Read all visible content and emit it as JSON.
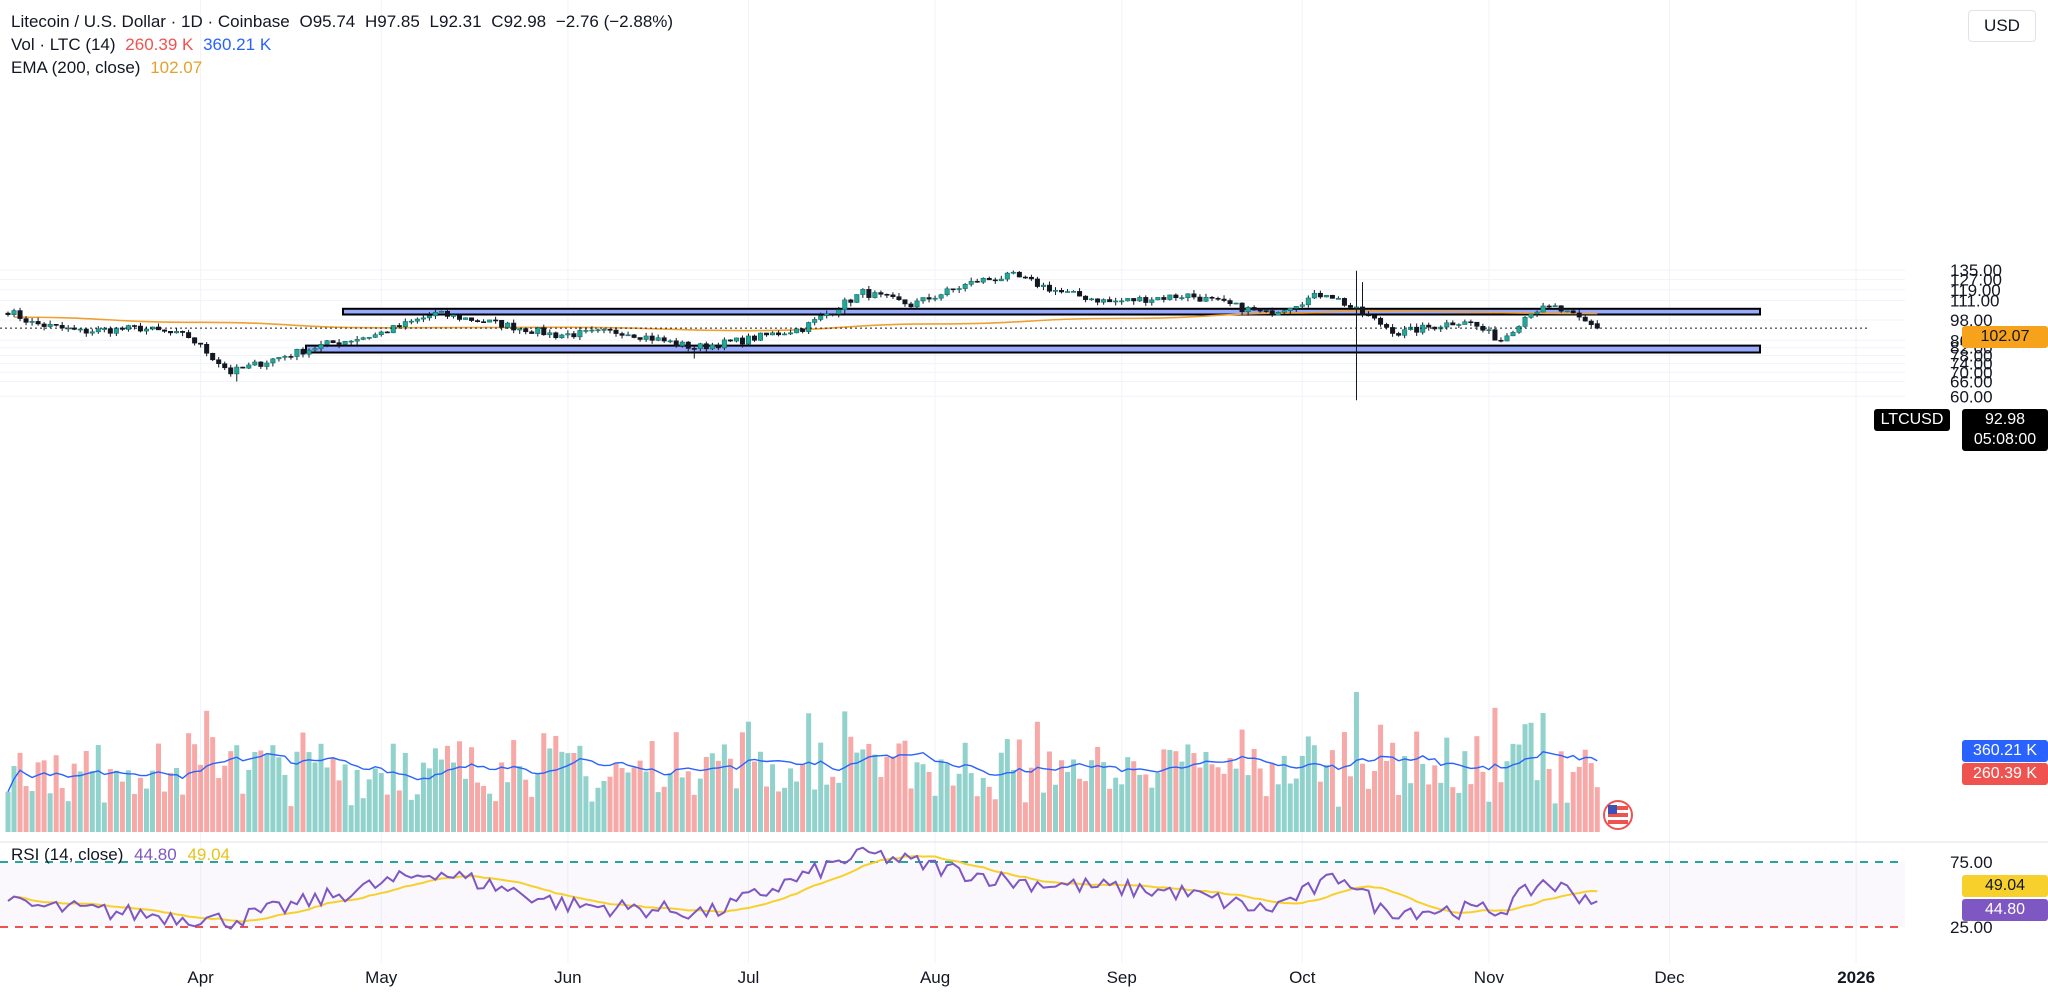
{
  "legend": {
    "title": "Litecoin / U.S. Dollar · 1D · Coinbase",
    "o_label": "O",
    "o": "95.74",
    "h_label": "H",
    "h": "97.85",
    "l_label": "L",
    "l": "92.31",
    "c_label": "C",
    "c": "92.98",
    "change": "−2.76 (−2.88%)",
    "vol_label": "Vol · LTC (14)",
    "vol_value": "260.39 K",
    "vol_ma": "360.21 K",
    "ema_label": "EMA (200, close)",
    "ema_value": "102.07"
  },
  "rsi_legend": {
    "label": "RSI (14, close)",
    "rsi": "44.80",
    "ma": "49.04"
  },
  "currency": "USD",
  "badges": {
    "ema": "102.07",
    "ticker": "LTCUSD",
    "price": "92.98",
    "countdown": "05:08:00",
    "vol_ma": "360.21 K",
    "vol": "260.39 K",
    "rsi_ma": "49.04",
    "rsi": "44.80"
  },
  "colors": {
    "up": "#26a69a",
    "down": "#ef5350",
    "ema": "#f0a030",
    "vol_ma": "#2962ff",
    "rsi": "#7e57c2",
    "rsi_ma": "#f7d02c",
    "zone": "#93a7ff",
    "rsi_upper": "#26a69a",
    "rsi_lower": "#ef5350"
  },
  "chart_data": {
    "type": "candlestick",
    "symbol": "LTCUSD",
    "timeframe": "1D",
    "ylim": [
      57,
      139
    ],
    "y_scale": "log",
    "y_ticks": [
      "135.00",
      "127.00",
      "119.00",
      "111.00",
      "98.00",
      "86.00",
      "82.00",
      "78.00",
      "74.00",
      "70.00",
      "66.00",
      "60.00"
    ],
    "x_ticks": [
      "Apr",
      "May",
      "Jun",
      "Jul",
      "Aug",
      "Sep",
      "Oct",
      "Nov",
      "Dec",
      "2026"
    ],
    "last": {
      "open": 95.74,
      "high": 97.85,
      "low": 92.31,
      "close": 92.98,
      "change": -2.76,
      "change_pct": -2.88
    },
    "ema200_last": 102.07,
    "zones": [
      {
        "from": 101.5,
        "to": 105.3
      },
      {
        "from": 79.5,
        "to": 83.1
      }
    ],
    "close_keypoints": [
      {
        "date": "2025-02-28",
        "close": 104.0
      },
      {
        "date": "2025-03-04",
        "close": 96.0
      },
      {
        "date": "2025-03-12",
        "close": 91.0
      },
      {
        "date": "2025-03-22",
        "close": 93.0
      },
      {
        "date": "2025-03-30",
        "close": 88.0
      },
      {
        "date": "2025-04-06",
        "close": 70.0
      },
      {
        "date": "2025-04-14",
        "close": 77.0
      },
      {
        "date": "2025-04-22",
        "close": 84.0
      },
      {
        "date": "2025-04-30",
        "close": 89.0
      },
      {
        "date": "2025-05-10",
        "close": 102.0
      },
      {
        "date": "2025-05-20",
        "close": 96.0
      },
      {
        "date": "2025-05-30",
        "close": 89.0
      },
      {
        "date": "2025-06-10",
        "close": 91.0
      },
      {
        "date": "2025-06-22",
        "close": 82.0
      },
      {
        "date": "2025-06-30",
        "close": 86.0
      },
      {
        "date": "2025-07-10",
        "close": 93.0
      },
      {
        "date": "2025-07-20",
        "close": 117.0
      },
      {
        "date": "2025-07-28",
        "close": 108.0
      },
      {
        "date": "2025-08-08",
        "close": 126.0
      },
      {
        "date": "2025-08-14",
        "close": 130.0
      },
      {
        "date": "2025-08-22",
        "close": 117.0
      },
      {
        "date": "2025-08-30",
        "close": 110.0
      },
      {
        "date": "2025-09-12",
        "close": 115.0
      },
      {
        "date": "2025-09-25",
        "close": 102.0
      },
      {
        "date": "2025-10-05",
        "close": 117.0
      },
      {
        "date": "2025-10-10",
        "close": 104.0
      },
      {
        "date": "2025-10-17",
        "close": 90.0
      },
      {
        "date": "2025-10-28",
        "close": 98.0
      },
      {
        "date": "2025-11-03",
        "close": 86.0
      },
      {
        "date": "2025-11-08",
        "close": 104.0
      },
      {
        "date": "2025-11-12",
        "close": 106.0
      },
      {
        "date": "2025-11-19",
        "close": 92.98
      }
    ],
    "ema200_keypoints": [
      {
        "date": "2025-03-01",
        "value": 99.8
      },
      {
        "date": "2025-04-01",
        "value": 96.5
      },
      {
        "date": "2025-05-01",
        "value": 93.2
      },
      {
        "date": "2025-06-01",
        "value": 93.5
      },
      {
        "date": "2025-07-01",
        "value": 91.5
      },
      {
        "date": "2025-08-01",
        "value": 95.5
      },
      {
        "date": "2025-09-01",
        "value": 99.0
      },
      {
        "date": "2025-10-01",
        "value": 102.5
      },
      {
        "date": "2025-10-10",
        "value": 104.0
      },
      {
        "date": "2025-11-19",
        "value": 102.07
      }
    ],
    "volume": {
      "last": "260.39 K",
      "ma14_last": "360.21 K"
    },
    "rsi": {
      "period": 14,
      "last": 44.8,
      "ma_last": 49.04,
      "levels": [
        75,
        25
      ],
      "y_ticks": [
        "75.00",
        "25.00"
      ],
      "keypoints": [
        {
          "date": "2025-03-01",
          "value": 42
        },
        {
          "date": "2025-04-06",
          "value": 30
        },
        {
          "date": "2025-05-10",
          "value": 68
        },
        {
          "date": "2025-06-01",
          "value": 42
        },
        {
          "date": "2025-06-25",
          "value": 36
        },
        {
          "date": "2025-07-20",
          "value": 82
        },
        {
          "date": "2025-08-14",
          "value": 60
        },
        {
          "date": "2025-09-10",
          "value": 52
        },
        {
          "date": "2025-09-25",
          "value": 38
        },
        {
          "date": "2025-10-08",
          "value": 65
        },
        {
          "date": "2025-10-14",
          "value": 38
        },
        {
          "date": "2025-11-03",
          "value": 38
        },
        {
          "date": "2025-11-10",
          "value": 60
        },
        {
          "date": "2025-11-19",
          "value": 44.8
        }
      ]
    }
  }
}
